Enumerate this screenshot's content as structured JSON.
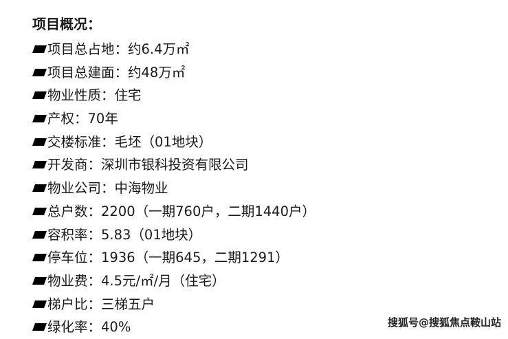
{
  "title": "项目概况：",
  "items": [
    {
      "label": "项目总占地：",
      "value": "约6.4万㎡"
    },
    {
      "label": "项目总建面：",
      "value": "约48万㎡"
    },
    {
      "label": "物业性质：",
      "value": "住宅"
    },
    {
      "label": "产权：",
      "value": "70年"
    },
    {
      "label": "交楼标准：",
      "value": "毛坯（01地块）"
    },
    {
      "label": "开发商：",
      "value": "深圳市银科投资有限公司"
    },
    {
      "label": "物业公司：",
      "value": "中海物业"
    },
    {
      "label": "总户数：",
      "value": "2200（一期760户，二期1440户）"
    },
    {
      "label": "容积率：",
      "value": "5.83（01地块）"
    },
    {
      "label": "停车位：",
      "value": "1936（一期645，二期1291）"
    },
    {
      "label": "物业费：",
      "value": "4.5元/㎡/月（住宅）"
    },
    {
      "label": "梯户比：",
      "value": "三梯五户"
    },
    {
      "label": "绿化率：",
      "value": "40%"
    }
  ],
  "watermark": "搜狐号@搜狐焦点鞍山站"
}
